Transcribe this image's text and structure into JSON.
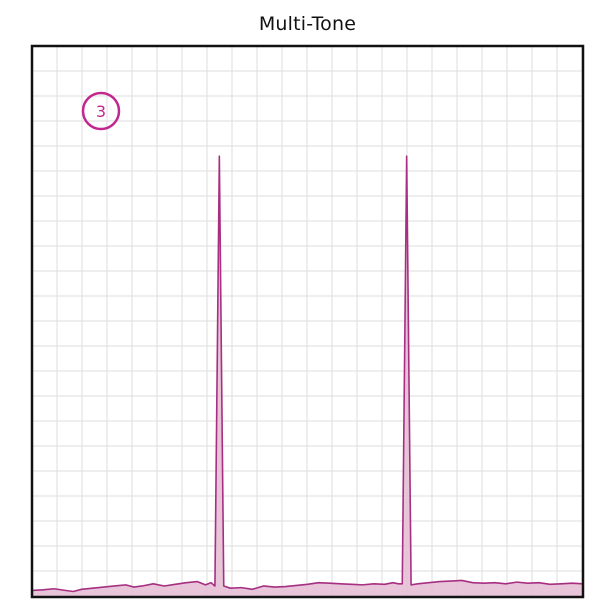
{
  "chart_data": {
    "type": "area",
    "title": "Multi-Tone",
    "badge": "3",
    "xlabel": "",
    "ylabel": "",
    "xlim": [
      0,
      100
    ],
    "ylim": [
      0,
      100
    ],
    "grid": true,
    "legend": "none",
    "colors": {
      "line": "#a62f82",
      "fill": "#e6bfd5",
      "badge": "#c2278f",
      "grid": "#dddddd",
      "frame": "#111111"
    },
    "series": [
      {
        "values": [
          [
            0,
            1.2
          ],
          [
            2,
            1.3
          ],
          [
            4,
            1.5
          ],
          [
            6,
            1.2
          ],
          [
            7.5,
            1.0
          ],
          [
            9,
            1.4
          ],
          [
            11,
            1.6
          ],
          [
            13,
            1.8
          ],
          [
            15,
            2.0
          ],
          [
            17,
            2.2
          ],
          [
            18.5,
            1.8
          ],
          [
            20,
            2.0
          ],
          [
            22,
            2.4
          ],
          [
            24,
            2.0
          ],
          [
            26,
            2.3
          ],
          [
            28,
            2.6
          ],
          [
            30,
            2.8
          ],
          [
            31.5,
            2.2
          ],
          [
            32.5,
            2.6
          ],
          [
            33.2,
            2.0
          ],
          [
            34.0,
            80.0
          ],
          [
            34.8,
            2.0
          ],
          [
            36,
            1.6
          ],
          [
            38,
            1.7
          ],
          [
            40,
            1.4
          ],
          [
            42,
            2.0
          ],
          [
            44,
            1.8
          ],
          [
            46,
            1.9
          ],
          [
            48,
            2.1
          ],
          [
            50,
            2.3
          ],
          [
            52,
            2.6
          ],
          [
            54,
            2.5
          ],
          [
            56,
            2.4
          ],
          [
            58,
            2.3
          ],
          [
            60,
            2.2
          ],
          [
            62,
            2.4
          ],
          [
            64,
            2.3
          ],
          [
            65.5,
            2.6
          ],
          [
            66.5,
            2.4
          ],
          [
            67.2,
            2.4
          ],
          [
            68.0,
            80.0
          ],
          [
            68.8,
            2.2
          ],
          [
            70,
            2.4
          ],
          [
            72,
            2.6
          ],
          [
            74,
            2.8
          ],
          [
            76,
            2.9
          ],
          [
            78,
            3.0
          ],
          [
            80,
            2.6
          ],
          [
            82,
            2.5
          ],
          [
            84,
            2.6
          ],
          [
            86,
            2.4
          ],
          [
            88,
            2.7
          ],
          [
            90,
            2.5
          ],
          [
            92,
            2.6
          ],
          [
            94,
            2.3
          ],
          [
            96,
            2.4
          ],
          [
            98,
            2.5
          ],
          [
            100,
            2.4
          ]
        ]
      }
    ]
  }
}
